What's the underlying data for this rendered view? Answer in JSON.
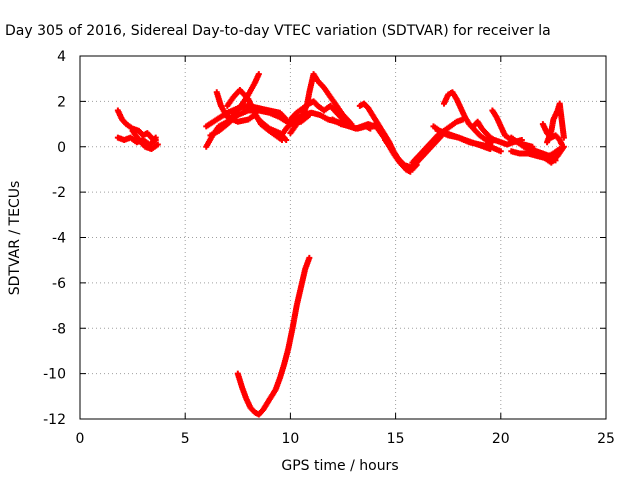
{
  "chart_data": {
    "type": "scatter",
    "title": "Day 305 of 2016, Sidereal Day-to-day VTEC variation (SDTVAR) for receiver la",
    "xlabel": "GPS time / hours",
    "ylabel": "SDTVAR / TECUs",
    "xlim": [
      0,
      25
    ],
    "ylim": [
      -12,
      4
    ],
    "xticks": [
      0,
      5,
      10,
      15,
      20,
      25
    ],
    "yticks": [
      -12,
      -10,
      -8,
      -6,
      -4,
      -2,
      0,
      2,
      4
    ],
    "grid": true,
    "legend": "none",
    "marker": "+",
    "color": "#ff0000",
    "series": [
      {
        "x": [
          1.8,
          2.0,
          2.2,
          2.5,
          2.8,
          3.0,
          3.2,
          3.5,
          3.6
        ],
        "y": [
          1.6,
          1.2,
          1.0,
          0.8,
          0.7,
          0.5,
          0.6,
          0.3,
          0.4
        ]
      },
      {
        "x": [
          1.8,
          2.1,
          2.4,
          2.7,
          3.0,
          3.3,
          3.6
        ],
        "y": [
          0.4,
          0.3,
          0.4,
          0.2,
          0.3,
          0.1,
          0.3
        ]
      },
      {
        "x": [
          2.5,
          2.8,
          3.1,
          3.4,
          3.7
        ],
        "y": [
          0.7,
          0.3,
          0.0,
          -0.1,
          0.1
        ]
      },
      {
        "x": [
          6.0,
          6.3,
          6.6,
          7.0,
          7.4,
          7.8,
          8.0,
          8.3,
          8.5
        ],
        "y": [
          0.0,
          0.5,
          0.9,
          1.1,
          1.5,
          2.0,
          2.3,
          2.8,
          3.2
        ]
      },
      {
        "x": [
          6.0,
          6.5,
          7.0,
          7.5,
          8.0,
          8.5,
          9.0,
          9.5,
          9.8
        ],
        "y": [
          0.9,
          1.2,
          1.5,
          1.7,
          1.8,
          1.7,
          1.6,
          1.5,
          1.2
        ]
      },
      {
        "x": [
          6.5,
          6.7,
          7.0,
          7.5,
          8.0,
          8.3,
          8.6,
          9.0,
          9.5,
          9.8
        ],
        "y": [
          2.4,
          1.8,
          1.3,
          1.1,
          1.2,
          1.4,
          1.1,
          0.8,
          0.6,
          0.3
        ]
      },
      {
        "x": [
          6.2,
          6.6,
          7.0,
          7.5,
          8.0,
          8.5,
          9.0,
          9.5,
          10.0,
          10.5,
          10.9
        ],
        "y": [
          0.5,
          0.7,
          1.0,
          1.4,
          1.6,
          1.6,
          1.5,
          1.3,
          1.0,
          1.1,
          1.4
        ]
      },
      {
        "x": [
          7.0,
          7.3,
          7.6,
          8.0,
          8.3,
          8.6,
          9.0,
          9.3,
          9.6
        ],
        "y": [
          1.8,
          2.2,
          2.5,
          2.1,
          1.5,
          1.0,
          0.7,
          0.5,
          0.3
        ]
      },
      {
        "x": [
          10.0,
          10.3,
          10.6,
          10.9,
          11.1,
          11.3,
          11.6,
          11.9,
          12.2,
          12.6
        ],
        "y": [
          1.2,
          1.5,
          1.7,
          1.9,
          2.0,
          1.8,
          1.6,
          1.8,
          1.5,
          1.1
        ]
      },
      {
        "x": [
          10.0,
          10.3,
          10.6,
          10.8,
          10.9,
          11.1,
          11.3,
          11.6,
          11.9,
          12.2,
          12.5,
          12.9
        ],
        "y": [
          0.6,
          1.0,
          1.4,
          1.9,
          2.4,
          3.2,
          2.9,
          2.6,
          2.2,
          1.8,
          1.4,
          1.0
        ]
      },
      {
        "x": [
          9.5,
          9.8,
          10.2,
          10.6,
          11.0,
          11.4,
          11.8,
          12.2,
          12.6
        ],
        "y": [
          0.4,
          0.8,
          1.2,
          1.4,
          1.5,
          1.4,
          1.2,
          1.1,
          1.0
        ]
      },
      {
        "x": [
          12.5,
          12.8,
          13.1,
          13.4,
          13.7,
          14.0
        ],
        "y": [
          1.0,
          0.9,
          0.8,
          0.9,
          1.0,
          0.9
        ]
      },
      {
        "x": [
          12.0,
          12.4,
          12.8,
          13.2,
          13.6,
          13.8
        ],
        "y": [
          1.2,
          1.0,
          0.9,
          0.8,
          0.9,
          0.8
        ]
      },
      {
        "x": [
          13.3,
          13.5,
          13.7,
          13.9,
          14.1,
          14.3,
          14.5,
          14.7,
          14.9,
          15.1,
          15.3,
          15.5,
          15.7
        ],
        "y": [
          1.8,
          1.9,
          1.7,
          1.4,
          1.1,
          0.8,
          0.5,
          0.2,
          -0.2,
          -0.5,
          -0.8,
          -1.0,
          -1.1
        ]
      },
      {
        "x": [
          14.0,
          14.3,
          14.6,
          14.9,
          15.2,
          15.5,
          15.8,
          16.0
        ],
        "y": [
          1.0,
          0.6,
          0.2,
          -0.3,
          -0.7,
          -0.9,
          -1.0,
          -0.8
        ]
      },
      {
        "x": [
          14.5,
          14.8,
          15.1,
          15.4,
          15.7,
          16.0,
          16.3,
          16.6,
          16.9,
          17.2
        ],
        "y": [
          0.3,
          -0.1,
          -0.5,
          -0.8,
          -0.9,
          -0.7,
          -0.4,
          -0.1,
          0.2,
          0.5
        ]
      },
      {
        "x": [
          15.8,
          16.1,
          16.4,
          16.7,
          17.0,
          17.3,
          17.6,
          17.9,
          18.2
        ],
        "y": [
          -0.7,
          -0.4,
          -0.1,
          0.2,
          0.5,
          0.7,
          0.9,
          1.1,
          1.2
        ]
      },
      {
        "x": [
          16.8,
          17.1,
          17.4,
          17.7,
          18.0,
          18.3,
          18.6,
          18.9,
          19.2,
          19.5
        ],
        "y": [
          0.9,
          0.7,
          0.6,
          0.5,
          0.4,
          0.3,
          0.2,
          0.1,
          0.0,
          -0.1
        ]
      },
      {
        "x": [
          17.3,
          17.5,
          17.7,
          17.9,
          18.1,
          18.3,
          18.5,
          18.8,
          19.0,
          19.3,
          19.6
        ],
        "y": [
          1.9,
          2.3,
          2.4,
          2.1,
          1.7,
          1.3,
          1.0,
          0.7,
          0.5,
          0.3,
          0.2
        ]
      },
      {
        "x": [
          17.0,
          17.5,
          18.0,
          18.5,
          19.0,
          19.5,
          20.0
        ],
        "y": [
          0.7,
          0.5,
          0.4,
          0.2,
          0.1,
          0.0,
          -0.2
        ]
      },
      {
        "x": [
          18.7,
          18.9,
          19.1,
          19.3,
          19.5,
          19.7,
          20.0,
          20.3,
          20.6,
          21.0
        ],
        "y": [
          0.9,
          1.1,
          0.8,
          0.6,
          0.4,
          0.3,
          0.2,
          0.1,
          0.2,
          0.3
        ]
      },
      {
        "x": [
          19.6,
          19.8,
          20.0,
          20.2,
          20.5,
          20.8,
          21.1,
          21.5
        ],
        "y": [
          1.6,
          1.3,
          0.9,
          0.5,
          0.3,
          0.2,
          0.1,
          0.0
        ]
      },
      {
        "x": [
          20.5,
          20.8,
          21.1,
          21.4,
          21.7,
          22.0,
          22.3,
          22.6
        ],
        "y": [
          0.4,
          0.2,
          0.0,
          -0.1,
          -0.2,
          -0.3,
          -0.4,
          -0.6
        ]
      },
      {
        "x": [
          20.5,
          20.9,
          21.3,
          21.7,
          22.1,
          22.5,
          22.8
        ],
        "y": [
          -0.2,
          -0.3,
          -0.3,
          -0.4,
          -0.5,
          -0.3,
          -0.1
        ]
      },
      {
        "x": [
          21.8,
          22.1,
          22.4,
          22.7,
          23.0
        ],
        "y": [
          -0.3,
          -0.5,
          -0.7,
          -0.4,
          0.0
        ]
      },
      {
        "x": [
          22.0,
          22.2,
          22.4,
          22.6,
          22.8,
          22.9
        ],
        "y": [
          1.0,
          0.6,
          0.4,
          0.5,
          0.3,
          0.1
        ]
      },
      {
        "x": [
          22.2,
          22.4,
          22.5,
          22.7,
          22.8,
          23.0
        ],
        "y": [
          0.2,
          0.7,
          1.2,
          1.6,
          1.9,
          0.4
        ]
      },
      {
        "x": [
          7.5,
          7.7,
          7.9,
          8.1,
          8.3,
          8.5,
          8.7,
          8.9,
          9.1,
          9.3,
          9.5,
          9.7,
          9.9,
          10.1,
          10.3,
          10.5,
          10.7,
          10.9
        ],
        "y": [
          -10.0,
          -10.6,
          -11.1,
          -11.5,
          -11.7,
          -11.8,
          -11.6,
          -11.3,
          -11.0,
          -10.7,
          -10.2,
          -9.6,
          -8.9,
          -8.0,
          -7.0,
          -6.2,
          -5.4,
          -4.9
        ]
      }
    ]
  }
}
